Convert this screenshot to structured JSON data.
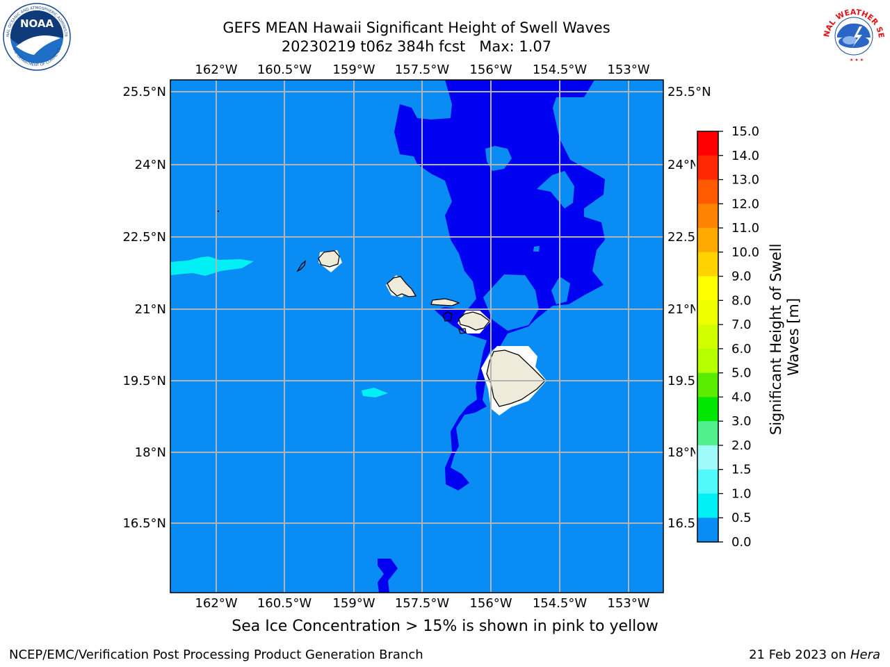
{
  "header": {
    "title_line1": "GEFS MEAN Hawaii Significant Height of Swell Waves",
    "title_line2": "20230219 t06z 384h fcst   Max: 1.07"
  },
  "logos": {
    "left": {
      "name": "NOAA",
      "ring_text": "NATIONAL OCEANIC AND ATMOSPHERIC ADMINISTRATION",
      "bottom_text": "U.S. DEPARTMENT OF COMMERCE"
    },
    "right": {
      "ring_text": "NATIONAL WEATHER SERVICE"
    }
  },
  "map": {
    "lon_labels": [
      "162°W",
      "160.5°W",
      "159°W",
      "157.5°W",
      "156°W",
      "154.5°W",
      "153°W"
    ],
    "lat_labels": [
      "25.5°N",
      "24°N",
      "22.5°N",
      "21°N",
      "19.5°N",
      "18°N",
      "16.5°N"
    ],
    "ocean_color": "#0a8cf5",
    "low_swell_color": "#0000f0",
    "high_swell_color": "#00f0f5",
    "land_color": "#efebdb",
    "grid_color": "#b4b4b4"
  },
  "colorbar": {
    "label": "Significant Height of Swell Waves [m]",
    "ticks": [
      "15.0",
      "14.0",
      "13.0",
      "12.0",
      "11.0",
      "10.0",
      "9.0",
      "8.0",
      "7.0",
      "6.0",
      "5.0",
      "4.0",
      "3.0",
      "2.0",
      "1.5",
      "1.0",
      "0.5",
      "0.0"
    ],
    "colors": [
      "#ff0000",
      "#ff2800",
      "#ff5a00",
      "#ff8200",
      "#ffaa00",
      "#ffd200",
      "#ffff00",
      "#f0ff00",
      "#d2ff00",
      "#b4ff00",
      "#5aeb00",
      "#00e600",
      "#50f08c",
      "#a0fafa",
      "#50fafa",
      "#00f0f5",
      "#0a8cf5",
      "#0000f0"
    ]
  },
  "caption": "Sea Ice Concentration > 15% is shown in pink to yellow",
  "footer": {
    "left": "NCEP/EMC/Verification Post Processing Product Generation Branch",
    "right_prefix": "21 Feb 2023 on ",
    "right_host": "Hera"
  }
}
